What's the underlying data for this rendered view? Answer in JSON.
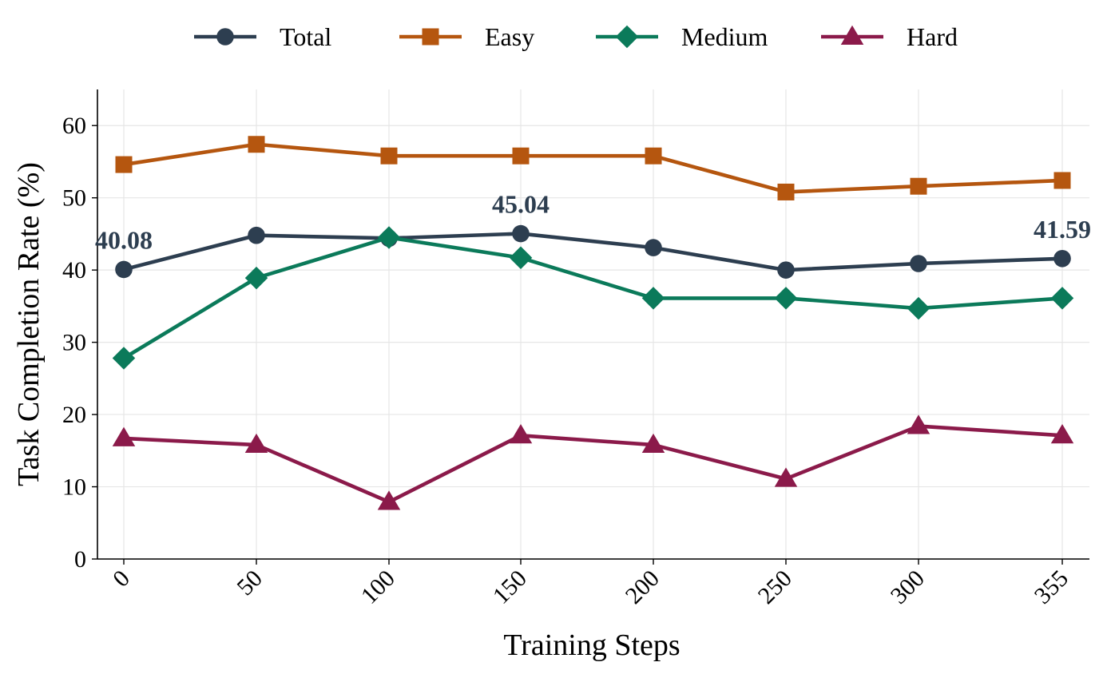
{
  "chart_data": {
    "type": "line",
    "xlabel": "Training Steps",
    "ylabel": "Task Completion Rate (%)",
    "x": [
      0,
      50,
      100,
      150,
      200,
      250,
      300,
      355
    ],
    "x_tick_labels": [
      "0",
      "50",
      "100",
      "150",
      "200",
      "250",
      "300",
      "355"
    ],
    "x_tick_rotation_deg": -45,
    "ylim": [
      0,
      65
    ],
    "y_ticks": [
      0,
      10,
      20,
      30,
      40,
      50,
      60
    ],
    "grid": true,
    "legend": {
      "placement": "top-center",
      "columns": 4
    },
    "series": [
      {
        "name": "Total",
        "color": "#2d3e50",
        "marker": "circle",
        "values": [
          40.08,
          44.8,
          44.4,
          45.04,
          43.1,
          40.0,
          40.9,
          41.59
        ]
      },
      {
        "name": "Easy",
        "color": "#b5560f",
        "marker": "square",
        "values": [
          54.6,
          57.4,
          55.8,
          55.8,
          55.8,
          50.8,
          51.6,
          52.4
        ]
      },
      {
        "name": "Medium",
        "color": "#0b7a5a",
        "marker": "diamond",
        "values": [
          27.8,
          38.9,
          44.5,
          41.7,
          36.1,
          36.1,
          34.7,
          36.1
        ]
      },
      {
        "name": "Hard",
        "color": "#8b1a4a",
        "marker": "triangle",
        "values": [
          16.7,
          15.8,
          7.9,
          17.1,
          15.8,
          11.1,
          18.4,
          17.1
        ]
      }
    ],
    "annotations": [
      {
        "series": "Total",
        "x": 0,
        "text": "40.08"
      },
      {
        "series": "Total",
        "x": 150,
        "text": "45.04"
      },
      {
        "series": "Total",
        "x": 355,
        "text": "41.59"
      }
    ]
  }
}
